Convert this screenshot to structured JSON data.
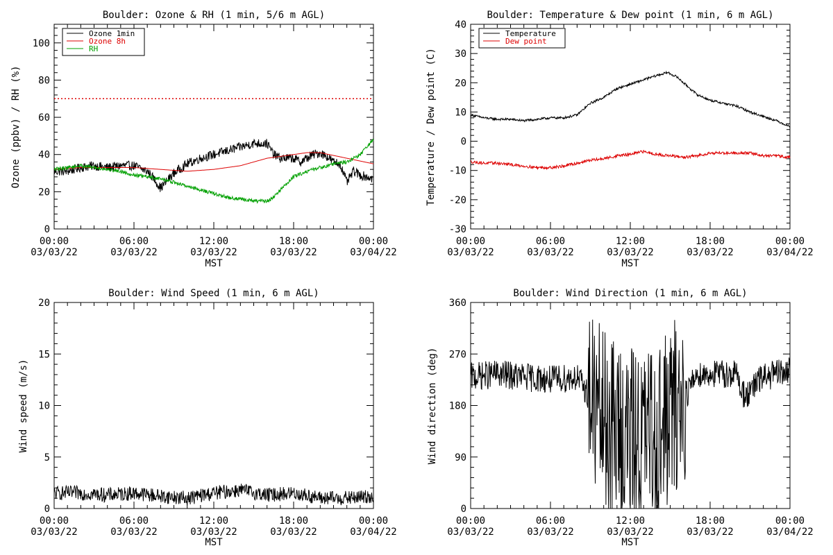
{
  "chart_data": [
    {
      "id": "ozone-rh",
      "type": "line",
      "title": "Boulder: Ozone & RH (1 min, 5/6 m AGL)",
      "xlabel": "MST",
      "ylabel": "Ozone (ppbv) / RH (%)",
      "ylim": [
        0,
        110
      ],
      "yticks": [
        0,
        20,
        40,
        60,
        80,
        100
      ],
      "xticks": [
        {
          "t": 0,
          "time": "00:00",
          "date": "03/03/22"
        },
        {
          "t": 6,
          "time": "06:00",
          "date": "03/03/22"
        },
        {
          "t": 12,
          "time": "12:00",
          "date": "03/03/22"
        },
        {
          "t": 18,
          "time": "18:00",
          "date": "03/03/22"
        },
        {
          "t": 24,
          "time": "00:00",
          "date": "03/04/22"
        }
      ],
      "legend": {
        "position": "top-left"
      },
      "reference_line": {
        "y": 70,
        "color": "#dd0000",
        "style": "dotted"
      },
      "series": [
        {
          "name": "Ozone 1min",
          "color": "#000000",
          "noise": 2.5,
          "x": [
            0,
            1,
            2,
            3,
            4,
            5,
            6,
            7,
            7.5,
            8,
            8.5,
            9,
            10,
            11,
            12,
            13,
            14,
            15,
            16,
            16.5,
            17,
            18,
            18.5,
            19,
            19.5,
            20,
            20.5,
            21,
            21.5,
            22,
            22.5,
            23,
            24
          ],
          "y": [
            31,
            31,
            33,
            34,
            33,
            34,
            34,
            31,
            27,
            22,
            26,
            30,
            35,
            38,
            40,
            42,
            44,
            46,
            46,
            40,
            38,
            38,
            36,
            38,
            40,
            41,
            39,
            36,
            35,
            25,
            31,
            29,
            27
          ]
        },
        {
          "name": "Ozone 8h",
          "color": "#dd0000",
          "noise": 0,
          "x": [
            0,
            2,
            4,
            6,
            8,
            10,
            12,
            14,
            16,
            18,
            19,
            20,
            22,
            24
          ],
          "y": [
            32,
            33,
            33,
            33,
            32,
            31,
            32,
            34,
            38,
            40,
            41,
            41,
            38,
            35
          ]
        },
        {
          "name": "RH",
          "color": "#00a000",
          "noise": 1.0,
          "x": [
            0,
            1,
            2,
            3,
            4,
            5,
            6,
            7,
            8,
            9,
            10,
            11,
            12,
            13,
            14,
            15,
            16,
            16.5,
            17,
            18,
            19,
            20,
            21,
            22,
            23,
            23.5,
            24
          ],
          "y": [
            32,
            33,
            34,
            33,
            32,
            31,
            29,
            28,
            27,
            25,
            23,
            21,
            19,
            17,
            16,
            15,
            15,
            17,
            21,
            28,
            31,
            33,
            35,
            36,
            40,
            44,
            48
          ]
        }
      ]
    },
    {
      "id": "temperature-dewpoint",
      "type": "line",
      "title": "Boulder: Temperature & Dew point (1 min, 6 m AGL)",
      "xlabel": "MST",
      "ylabel": "Temperature / Dew point (C)",
      "ylim": [
        -30,
        40
      ],
      "yticks": [
        -30,
        -20,
        -10,
        0,
        10,
        20,
        30,
        40
      ],
      "xticks": [
        {
          "t": 0,
          "time": "00:00",
          "date": "03/03/22"
        },
        {
          "t": 6,
          "time": "06:00",
          "date": "03/03/22"
        },
        {
          "t": 12,
          "time": "12:00",
          "date": "03/03/22"
        },
        {
          "t": 18,
          "time": "18:00",
          "date": "03/03/22"
        },
        {
          "t": 24,
          "time": "00:00",
          "date": "03/04/22"
        }
      ],
      "legend": {
        "position": "top-left"
      },
      "series": [
        {
          "name": "Temperature",
          "color": "#000000",
          "noise": 0.4,
          "x": [
            0,
            1,
            2,
            3,
            4,
            5,
            6,
            7,
            8,
            9,
            10,
            11,
            12,
            13,
            14,
            14.8,
            15.5,
            16,
            17,
            18,
            19,
            20,
            21,
            22,
            23,
            24
          ],
          "y": [
            9,
            8,
            7.5,
            7.5,
            7,
            7.5,
            8,
            8,
            9,
            13,
            15,
            18,
            19.5,
            21,
            22.5,
            23.5,
            22,
            20,
            16,
            14,
            13,
            12,
            10,
            8.5,
            7,
            5
          ]
        },
        {
          "name": "Dew point",
          "color": "#dd0000",
          "noise": 0.5,
          "x": [
            0,
            1,
            2,
            3,
            4,
            5,
            6,
            7,
            8,
            9,
            10,
            11,
            12,
            13,
            14,
            15,
            16,
            17,
            18,
            19,
            20,
            21,
            22,
            23,
            24
          ],
          "y": [
            -7,
            -7.5,
            -7.5,
            -8,
            -8.5,
            -9,
            -9,
            -8.5,
            -7.5,
            -6.5,
            -6,
            -5,
            -4.5,
            -3.5,
            -4.5,
            -5,
            -5.5,
            -5,
            -4,
            -4,
            -4,
            -4,
            -5,
            -5,
            -5.5
          ]
        }
      ]
    },
    {
      "id": "wind-speed",
      "type": "line",
      "title": "Boulder: Wind Speed (1 min, 6 m AGL)",
      "xlabel": "MST",
      "ylabel": "Wind speed (m/s)",
      "ylim": [
        0,
        20
      ],
      "yticks": [
        0,
        5,
        10,
        15,
        20
      ],
      "xticks": [
        {
          "t": 0,
          "time": "00:00",
          "date": "03/03/22"
        },
        {
          "t": 6,
          "time": "06:00",
          "date": "03/03/22"
        },
        {
          "t": 12,
          "time": "12:00",
          "date": "03/03/22"
        },
        {
          "t": 18,
          "time": "18:00",
          "date": "03/03/22"
        },
        {
          "t": 24,
          "time": "00:00",
          "date": "03/04/22"
        }
      ],
      "series": [
        {
          "name": "",
          "color": "#000000",
          "noise": 0.7,
          "x": [
            0,
            2,
            4,
            6,
            8,
            10,
            12,
            14,
            16,
            18,
            20,
            22,
            24
          ],
          "y": [
            1.5,
            1.5,
            1.3,
            1.5,
            1.2,
            1.0,
            1.5,
            1.8,
            1.3,
            1.5,
            1.0,
            1.0,
            1.2
          ]
        }
      ]
    },
    {
      "id": "wind-direction",
      "type": "line",
      "title": "Boulder: Wind Direction (1 min, 6 m AGL)",
      "xlabel": "MST",
      "ylabel": "Wind direction (deg)",
      "ylim": [
        0,
        360
      ],
      "yticks": [
        0,
        90,
        180,
        270,
        360
      ],
      "xticks": [
        {
          "t": 0,
          "time": "00:00",
          "date": "03/03/22"
        },
        {
          "t": 6,
          "time": "06:00",
          "date": "03/03/22"
        },
        {
          "t": 12,
          "time": "12:00",
          "date": "03/03/22"
        },
        {
          "t": 18,
          "time": "18:00",
          "date": "03/03/22"
        },
        {
          "t": 24,
          "time": "00:00",
          "date": "03/04/22"
        }
      ],
      "series": [
        {
          "name": "",
          "color": "#000000",
          "noise": 25,
          "erratic": [
            [
              8.8,
              16.2,
              160
            ]
          ],
          "x": [
            0,
            2,
            4,
            6,
            8,
            8.8,
            10,
            12,
            14,
            16.2,
            17,
            18,
            20,
            20.5,
            21,
            21.5,
            22,
            24
          ],
          "y": [
            230,
            235,
            230,
            225,
            230,
            200,
            150,
            120,
            130,
            200,
            235,
            235,
            235,
            200,
            200,
            220,
            230,
            240
          ]
        }
      ]
    }
  ]
}
